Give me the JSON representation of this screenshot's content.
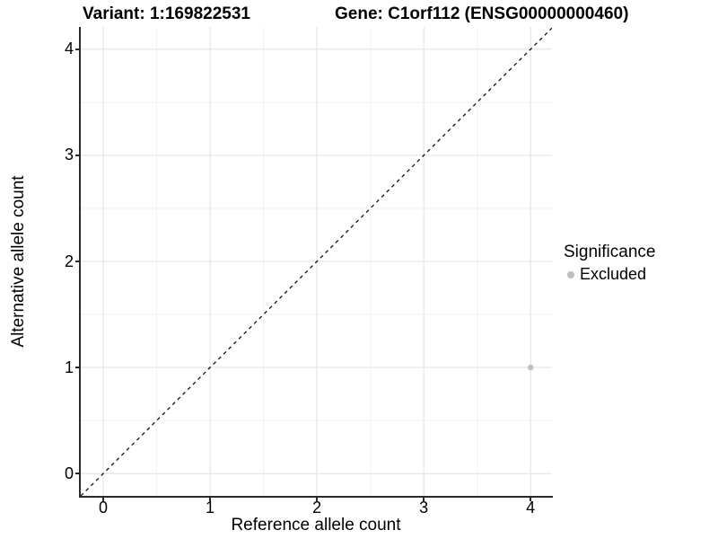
{
  "titles": {
    "variant": "Variant: 1:169822531",
    "gene": "Gene: C1orf112 (ENSG00000000460)"
  },
  "axes": {
    "x": {
      "label": "Reference allele count",
      "ticks": [
        "0",
        "1",
        "2",
        "3",
        "4"
      ]
    },
    "y": {
      "label": "Alternative allele count",
      "ticks": [
        "0",
        "1",
        "2",
        "3",
        "4"
      ]
    }
  },
  "legend": {
    "title": "Significance",
    "items": [
      {
        "label": "Excluded",
        "color": "#bdbdbd"
      }
    ]
  },
  "colors": {
    "background": "#ffffff",
    "grid_major": "#e3e3e3",
    "grid_minor": "#f2f2f2",
    "axis_line": "#2b2b2b",
    "identity_line": "#111111",
    "point": "#bdbdbd",
    "text": "#000000"
  },
  "chart_data": {
    "type": "scatter",
    "title": "Variant: 1:169822531 | Gene: C1orf112 (ENSG00000000460)",
    "xlabel": "Reference allele count",
    "ylabel": "Alternative allele count",
    "xlim": [
      -0.21,
      4.2
    ],
    "ylim": [
      -0.21,
      4.21
    ],
    "x_ticks": [
      0,
      1,
      2,
      3,
      4
    ],
    "y_ticks": [
      0,
      1,
      2,
      3,
      4
    ],
    "grid": "major+minor",
    "legend_position": "right",
    "abline": {
      "slope": 1,
      "intercept": 0,
      "style": "dashed",
      "color": "#111111"
    },
    "series": [
      {
        "name": "Excluded",
        "color": "#bdbdbd",
        "points": [
          {
            "x": 4,
            "y": 1
          }
        ]
      }
    ]
  }
}
